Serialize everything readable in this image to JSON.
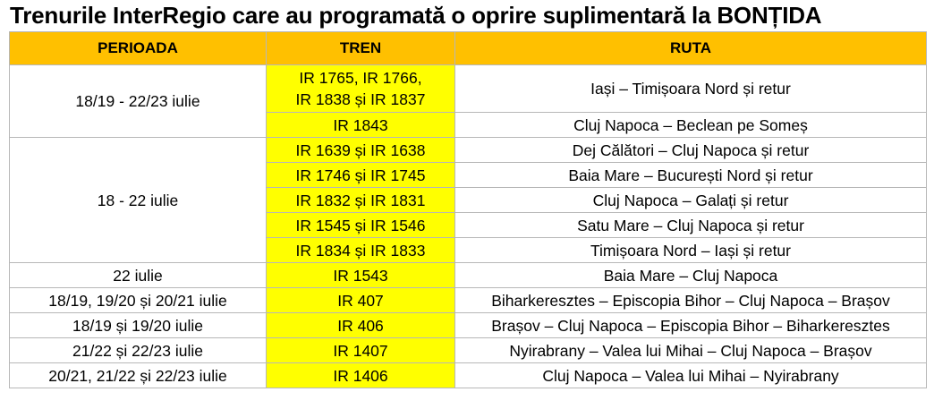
{
  "title": "Trenurile InterRegio care au programată o oprire suplimentară la BONȚIDA",
  "columns": [
    "PERIOADA",
    "TREN",
    "RUTA"
  ],
  "groups": [
    {
      "perioada": "18/19 - 22/23 iulie",
      "rows": [
        {
          "tren": [
            "IR 1765, IR 1766,",
            "IR 1838 și IR 1837"
          ],
          "ruta": "Iași – Timișoara Nord și retur"
        },
        {
          "tren": [
            "IR 1843"
          ],
          "ruta": "Cluj Napoca – Beclean pe Someș"
        }
      ]
    },
    {
      "perioada": "18 - 22 iulie",
      "rows": [
        {
          "tren": [
            "IR 1639 și IR 1638"
          ],
          "ruta": "Dej Călători – Cluj Napoca și retur"
        },
        {
          "tren": [
            "IR 1746 și IR 1745"
          ],
          "ruta": "Baia Mare – București Nord și retur"
        },
        {
          "tren": [
            "IR 1832 și IR 1831"
          ],
          "ruta": "Cluj Napoca – Galați și retur"
        },
        {
          "tren": [
            "IR 1545 și IR 1546"
          ],
          "ruta": "Satu Mare – Cluj Napoca și retur"
        },
        {
          "tren": [
            "IR 1834 și IR 1833"
          ],
          "ruta": "Timișoara Nord – Iași și retur"
        }
      ]
    },
    {
      "perioada": "22 iulie",
      "rows": [
        {
          "tren": [
            "IR 1543"
          ],
          "ruta": "Baia Mare – Cluj Napoca"
        }
      ]
    },
    {
      "perioada": "18/19, 19/20 și 20/21 iulie",
      "rows": [
        {
          "tren": [
            "IR 407"
          ],
          "ruta": "Biharkeresztes – Episcopia Bihor – Cluj Napoca – Brașov"
        }
      ]
    },
    {
      "perioada": "18/19 și 19/20 iulie",
      "rows": [
        {
          "tren": [
            "IR 406"
          ],
          "ruta": "Brașov – Cluj Napoca – Episcopia Bihor – Biharkeresztes"
        }
      ]
    },
    {
      "perioada": "21/22 și 22/23 iulie",
      "rows": [
        {
          "tren": [
            "IR 1407"
          ],
          "ruta": "Nyirabrany – Valea lui Mihai – Cluj Napoca – Brașov"
        }
      ]
    },
    {
      "perioada": "20/21, 21/22 și 22/23 iulie",
      "rows": [
        {
          "tren": [
            "IR 1406"
          ],
          "ruta": "Cluj Napoca – Valea lui Mihai – Nyirabrany"
        }
      ]
    }
  ],
  "colors": {
    "header": "#ffc000",
    "tren": "#ffff00",
    "border": "#b7b7b7"
  }
}
